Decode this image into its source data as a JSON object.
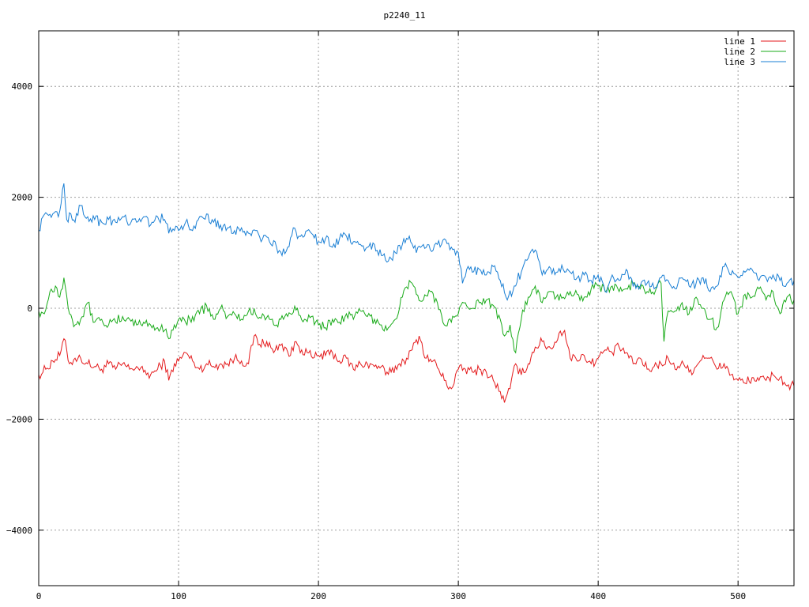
{
  "chart_data": {
    "type": "line",
    "title": "p2240_11",
    "xlabel": "",
    "ylabel": "",
    "xlim": [
      0,
      540
    ],
    "ylim": [
      -5000,
      5000
    ],
    "xticks": [
      0,
      100,
      200,
      300,
      400,
      500
    ],
    "yticks": [
      -4000,
      -2000,
      0,
      2000,
      4000
    ],
    "ytick_labels": [
      "−4000",
      "−2000",
      "0",
      "2000",
      "4000"
    ],
    "grid": true,
    "legend_position": "top-right",
    "series": [
      {
        "name": "line 1",
        "color": "#e41a1c",
        "x": [
          0,
          5,
          10,
          15,
          18,
          22,
          26,
          30,
          35,
          40,
          45,
          50,
          55,
          60,
          65,
          70,
          75,
          80,
          85,
          90,
          93,
          97,
          100,
          105,
          110,
          115,
          120,
          125,
          130,
          135,
          140,
          145,
          150,
          154,
          158,
          163,
          168,
          172,
          176,
          180,
          184,
          188,
          192,
          196,
          200,
          205,
          210,
          215,
          220,
          225,
          230,
          235,
          240,
          245,
          248,
          252,
          258,
          263,
          267,
          272,
          277,
          282,
          286,
          290,
          295,
          300,
          305,
          310,
          315,
          320,
          325,
          330,
          333,
          337,
          341,
          345,
          350,
          355,
          360,
          364,
          368,
          372,
          376,
          380,
          384,
          390,
          395,
          400,
          405,
          410,
          415,
          420,
          425,
          430,
          435,
          440,
          445,
          450,
          455,
          460,
          465,
          470,
          475,
          480,
          485,
          490,
          495,
          500,
          505,
          510,
          515,
          520,
          525,
          530,
          535,
          540
        ],
        "y": [
          -1200,
          -1100,
          -950,
          -850,
          -550,
          -1000,
          -900,
          -900,
          -1000,
          -1050,
          -1100,
          -1000,
          -1100,
          -1000,
          -1100,
          -1050,
          -1150,
          -1200,
          -1100,
          -950,
          -1300,
          -1000,
          -950,
          -800,
          -950,
          -1100,
          -1000,
          -1050,
          -1000,
          -1000,
          -900,
          -950,
          -1000,
          -500,
          -650,
          -600,
          -800,
          -650,
          -700,
          -850,
          -600,
          -750,
          -800,
          -900,
          -850,
          -850,
          -800,
          -950,
          -900,
          -1100,
          -1000,
          -1000,
          -1050,
          -1050,
          -1200,
          -1150,
          -1000,
          -900,
          -750,
          -500,
          -900,
          -950,
          -1100,
          -1300,
          -1450,
          -1100,
          -1100,
          -1150,
          -1100,
          -1150,
          -1300,
          -1500,
          -1700,
          -1450,
          -1000,
          -1200,
          -1000,
          -700,
          -600,
          -700,
          -700,
          -450,
          -400,
          -900,
          -900,
          -850,
          -1000,
          -900,
          -750,
          -800,
          -700,
          -800,
          -1000,
          -900,
          -1100,
          -1050,
          -1000,
          -900,
          -1100,
          -950,
          -1150,
          -1050,
          -850,
          -900,
          -1100,
          -1000,
          -1200,
          -1300,
          -1350,
          -1250,
          -1300,
          -1300,
          -1200,
          -1250,
          -1400,
          -1400
        ]
      },
      {
        "name": "line 2",
        "color": "#1aab1a",
        "x": [
          0,
          4,
          8,
          12,
          15,
          18,
          22,
          26,
          30,
          35,
          40,
          45,
          50,
          55,
          60,
          65,
          70,
          75,
          80,
          85,
          90,
          93,
          97,
          100,
          105,
          110,
          115,
          120,
          125,
          130,
          135,
          140,
          145,
          150,
          155,
          160,
          165,
          170,
          175,
          180,
          185,
          190,
          195,
          200,
          205,
          210,
          215,
          220,
          225,
          230,
          235,
          240,
          245,
          250,
          255,
          260,
          265,
          270,
          275,
          280,
          285,
          290,
          295,
          300,
          305,
          310,
          315,
          320,
          325,
          330,
          333,
          337,
          341,
          345,
          350,
          355,
          360,
          365,
          370,
          375,
          380,
          385,
          390,
          395,
          400,
          405,
          410,
          415,
          420,
          425,
          430,
          435,
          440,
          445,
          447,
          450,
          455,
          460,
          465,
          470,
          475,
          480,
          485,
          490,
          495,
          500,
          505,
          510,
          515,
          520,
          525,
          530,
          535,
          540
        ],
        "y": [
          -50,
          -100,
          300,
          400,
          200,
          550,
          -100,
          -300,
          -200,
          100,
          -250,
          -200,
          -300,
          -250,
          -150,
          -200,
          -300,
          -250,
          -300,
          -350,
          -400,
          -550,
          -300,
          -200,
          -250,
          -150,
          -100,
          50,
          -200,
          0,
          -150,
          -100,
          -200,
          -50,
          -100,
          -100,
          -200,
          -300,
          -200,
          -100,
          0,
          -200,
          -150,
          -300,
          -350,
          -200,
          -250,
          -100,
          -200,
          -50,
          -150,
          -200,
          -300,
          -350,
          -200,
          200,
          500,
          250,
          150,
          300,
          100,
          -300,
          -250,
          -100,
          100,
          0,
          100,
          150,
          50,
          -200,
          -500,
          -300,
          -800,
          -200,
          200,
          400,
          100,
          300,
          200,
          200,
          300,
          250,
          200,
          350,
          400,
          300,
          400,
          300,
          350,
          450,
          350,
          300,
          250,
          450,
          -600,
          -50,
          -50,
          100,
          -100,
          200,
          0,
          -200,
          -350,
          150,
          300,
          -100,
          250,
          200,
          350,
          150,
          300,
          -100,
          200,
          150
        ]
      },
      {
        "name": "line 3",
        "color": "#1a7fd4",
        "x": [
          0,
          3,
          6,
          10,
          14,
          18,
          20,
          23,
          26,
          30,
          35,
          40,
          45,
          50,
          55,
          60,
          65,
          70,
          75,
          80,
          85,
          90,
          93,
          97,
          100,
          105,
          110,
          115,
          120,
          125,
          130,
          135,
          140,
          145,
          150,
          155,
          160,
          165,
          170,
          174,
          178,
          182,
          186,
          190,
          195,
          200,
          205,
          210,
          215,
          220,
          225,
          230,
          235,
          240,
          245,
          250,
          255,
          260,
          265,
          270,
          275,
          280,
          285,
          290,
          295,
          300,
          303,
          306,
          310,
          315,
          320,
          325,
          330,
          335,
          340,
          345,
          350,
          355,
          360,
          365,
          370,
          375,
          380,
          385,
          390,
          395,
          400,
          405,
          410,
          415,
          420,
          425,
          430,
          435,
          440,
          445,
          450,
          455,
          460,
          465,
          470,
          475,
          480,
          485,
          490,
          495,
          500,
          505,
          510,
          515,
          520,
          525,
          530,
          535,
          540
        ],
        "y": [
          1400,
          1650,
          1700,
          1700,
          1650,
          2250,
          1600,
          1700,
          1550,
          1850,
          1650,
          1600,
          1550,
          1600,
          1550,
          1650,
          1500,
          1550,
          1650,
          1500,
          1650,
          1600,
          1350,
          1400,
          1400,
          1550,
          1400,
          1650,
          1700,
          1550,
          1500,
          1450,
          1400,
          1450,
          1350,
          1400,
          1250,
          1200,
          1100,
          950,
          1100,
          1450,
          1300,
          1300,
          1350,
          1200,
          1250,
          1100,
          1250,
          1300,
          1200,
          1150,
          1100,
          1150,
          950,
          850,
          1000,
          1150,
          1300,
          1000,
          1150,
          1050,
          1150,
          1250,
          1100,
          1000,
          450,
          700,
          650,
          700,
          600,
          750,
          500,
          150,
          400,
          650,
          900,
          1050,
          600,
          750,
          650,
          700,
          650,
          550,
          600,
          500,
          600,
          300,
          600,
          500,
          700,
          400,
          400,
          450,
          350,
          550,
          500,
          350,
          550,
          400,
          450,
          550,
          300,
          400,
          750,
          600,
          550,
          650,
          700,
          500,
          550,
          600,
          500,
          450,
          500
        ]
      }
    ]
  }
}
